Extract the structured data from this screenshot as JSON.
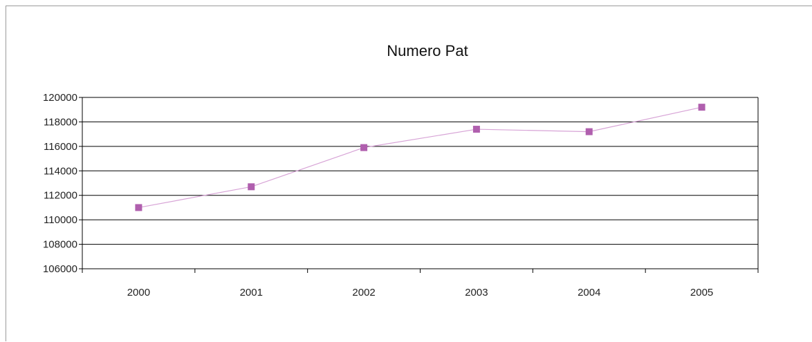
{
  "chart_data": {
    "type": "line",
    "title": "Numero Pat",
    "xlabel": "",
    "ylabel": "",
    "categories": [
      "2000",
      "2001",
      "2002",
      "2003",
      "2004",
      "2005"
    ],
    "series": [
      {
        "values": [
          111000,
          112700,
          115900,
          117400,
          117200,
          119200
        ],
        "color": "#b05fae",
        "line_color": "#d7a3d6",
        "marker": "square"
      }
    ],
    "ylim": [
      106000,
      120000
    ],
    "yticks": [
      "106000",
      "108000",
      "110000",
      "112000",
      "114000",
      "116000",
      "118000",
      "120000"
    ],
    "grid": true,
    "legend": "none"
  }
}
